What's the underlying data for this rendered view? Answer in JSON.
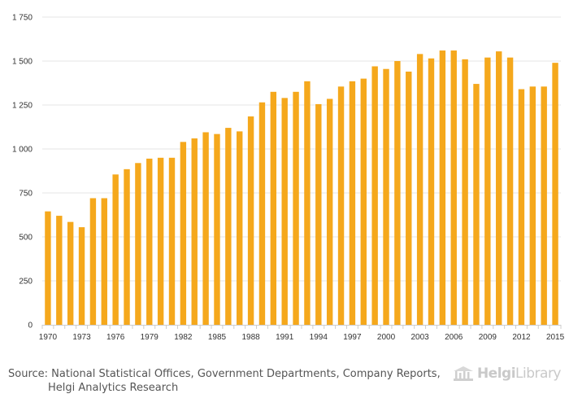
{
  "chart_data": {
    "type": "bar",
    "title": "",
    "xlabel": "",
    "ylabel": "",
    "ylim": [
      0,
      1750
    ],
    "y_ticks": [
      0,
      250,
      500,
      750,
      1000,
      1250,
      1500,
      1750
    ],
    "y_tick_labels": [
      "0",
      "250",
      "500",
      "750",
      "1 000",
      "1 250",
      "1 500",
      "1 750"
    ],
    "x_tick_labels": [
      "1970",
      "1973",
      "1976",
      "1979",
      "1982",
      "1985",
      "1988",
      "1991",
      "1994",
      "1997",
      "2000",
      "2003",
      "2006",
      "2009",
      "2012",
      "2015"
    ],
    "bar_color": "#f5a81c",
    "grid_color": "#e6e6e6",
    "categories": [
      "1970",
      "1971",
      "1972",
      "1973",
      "1974",
      "1975",
      "1976",
      "1977",
      "1978",
      "1979",
      "1980",
      "1981",
      "1982",
      "1983",
      "1984",
      "1985",
      "1986",
      "1987",
      "1988",
      "1989",
      "1990",
      "1991",
      "1992",
      "1993",
      "1994",
      "1995",
      "1996",
      "1997",
      "1998",
      "1999",
      "2000",
      "2001",
      "2002",
      "2003",
      "2004",
      "2005",
      "2006",
      "2007",
      "2008",
      "2009",
      "2010",
      "2011",
      "2012",
      "2013",
      "2014",
      "2015"
    ],
    "values": [
      645,
      620,
      585,
      555,
      720,
      720,
      855,
      885,
      920,
      945,
      950,
      950,
      1040,
      1060,
      1095,
      1085,
      1120,
      1100,
      1185,
      1265,
      1325,
      1290,
      1325,
      1385,
      1255,
      1285,
      1355,
      1385,
      1400,
      1470,
      1455,
      1500,
      1440,
      1540,
      1515,
      1560,
      1560,
      1510,
      1370,
      1520,
      1555,
      1520,
      1340,
      1355,
      1355,
      1490
    ]
  },
  "footer": {
    "source_line1": "Source: National Statistical Offices, Government Departments, Company Reports,",
    "source_line2": "Helgi Analytics Research",
    "brand_part1": "Helgi",
    "brand_part2": "Library"
  }
}
